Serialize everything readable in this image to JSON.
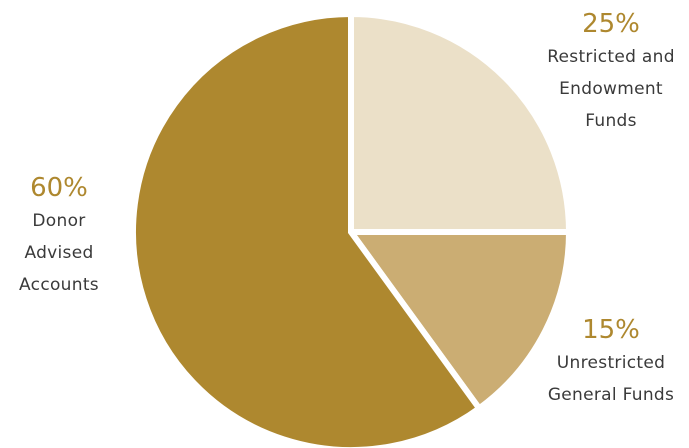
{
  "chart_data": {
    "type": "pie",
    "title": "",
    "slices": [
      {
        "percent_label": "25%",
        "label_lines": [
          "Restricted and",
          "Endowment",
          "Funds"
        ],
        "value": 25,
        "color": "#ebe0c8"
      },
      {
        "percent_label": "15%",
        "label_lines": [
          "Unrestricted",
          "General Funds"
        ],
        "value": 15,
        "color": "#cbad73"
      },
      {
        "percent_label": "60%",
        "label_lines": [
          "Donor",
          "Advised",
          "Accounts"
        ],
        "value": 60,
        "color": "#ae882f"
      }
    ],
    "start_angle": "12 o'clock",
    "direction": "clockwise",
    "slice_separator_color": "#ffffff",
    "label_accent_color": "#ae882f",
    "legend": "none"
  }
}
